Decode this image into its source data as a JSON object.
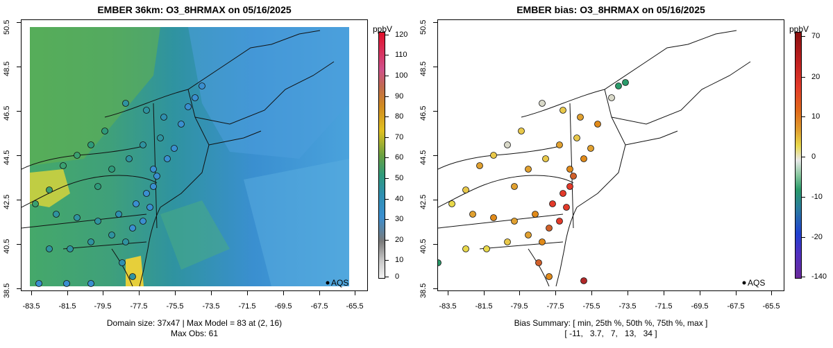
{
  "left_panel": {
    "title": "EMBER 36km: O3_8HRMAX on 05/16/2025",
    "footer_line1": "Domain size: 37x47 | Max Model = 83 at (2, 16)",
    "footer_line2": "Max Obs: 61",
    "colorbar_unit": "ppbV",
    "colorbar_ticks": [
      "120",
      "110",
      "100",
      "90",
      "80",
      "70",
      "60",
      "50",
      "40",
      "30",
      "20",
      "10",
      "0"
    ],
    "legend_label": "AQS"
  },
  "right_panel": {
    "title": "EMBER bias: O3_8HRMAX on 05/16/2025",
    "footer_line1": "Bias Summary: [ min, 25th %, 50th %, 75th %, max ]",
    "footer_line2": "[ -11,   3.7,   7,   13,   34 ]",
    "colorbar_unit": "ppbV",
    "colorbar_ticks": [
      "70",
      "20",
      "10",
      "0",
      "-10",
      "-20",
      "-140"
    ],
    "legend_label": "AQS"
  },
  "axes": {
    "x_ticks": [
      "-83.5",
      "-81.5",
      "-79.5",
      "-77.5",
      "-75.5",
      "-73.5",
      "-71.5",
      "-69.5",
      "-67.5",
      "-65.5"
    ],
    "y_ticks": [
      "38.5",
      "40.5",
      "42.5",
      "44.5",
      "46.5",
      "48.5",
      "50.5"
    ]
  },
  "colors": {
    "model_low": "#3a8fd0",
    "model_mid": "#2f9a7a",
    "model_high": "#e8d23a",
    "bias_positive": "#e23a2a",
    "bias_moderate": "#e08a1a",
    "bias_neutral": "#d8d8c8",
    "bias_negative": "#2a9a6a"
  }
}
